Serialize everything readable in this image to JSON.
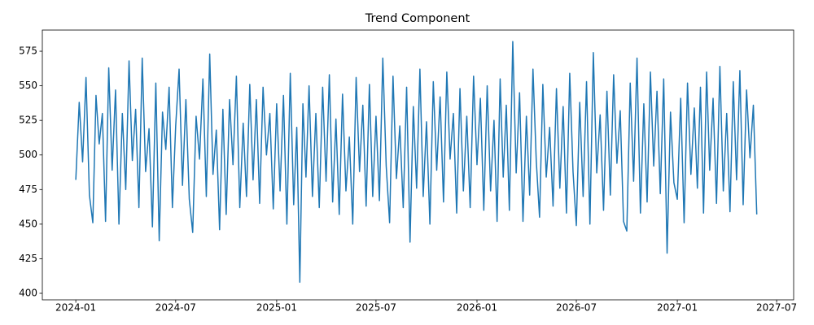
{
  "chart_data": {
    "type": "line",
    "title": "Trend Component",
    "x": [
      "2024-01",
      "2024-01",
      "2024-01",
      "2024-01",
      "2024-01",
      "2024-02",
      "2024-02",
      "2024-02",
      "2024-02",
      "2024-02",
      "2024-03",
      "2024-03",
      "2024-03",
      "2024-03",
      "2024-03",
      "2024-04",
      "2024-04",
      "2024-04",
      "2024-04",
      "2024-04",
      "2024-05",
      "2024-05",
      "2024-05",
      "2024-05",
      "2024-05",
      "2024-06",
      "2024-06",
      "2024-06",
      "2024-06",
      "2024-06",
      "2024-07",
      "2024-07",
      "2024-07",
      "2024-07",
      "2024-07",
      "2024-08",
      "2024-08",
      "2024-08",
      "2024-08",
      "2024-08",
      "2024-09",
      "2024-09",
      "2024-09",
      "2024-09",
      "2024-09",
      "2024-10",
      "2024-10",
      "2024-10",
      "2024-10",
      "2024-10",
      "2024-11",
      "2024-11",
      "2024-11",
      "2024-11",
      "2024-11",
      "2024-12",
      "2024-12",
      "2024-12",
      "2024-12",
      "2024-12",
      "2025-01",
      "2025-01",
      "2025-01",
      "2025-01",
      "2025-01",
      "2025-02",
      "2025-02",
      "2025-02",
      "2025-02",
      "2025-02",
      "2025-03",
      "2025-03",
      "2025-03",
      "2025-03",
      "2025-03",
      "2025-04",
      "2025-04",
      "2025-04",
      "2025-04",
      "2025-04",
      "2025-05",
      "2025-05",
      "2025-05",
      "2025-05",
      "2025-05",
      "2025-06",
      "2025-06",
      "2025-06",
      "2025-06",
      "2025-06",
      "2025-07",
      "2025-07",
      "2025-07",
      "2025-07",
      "2025-07",
      "2025-08",
      "2025-08",
      "2025-08",
      "2025-08",
      "2025-08",
      "2025-09",
      "2025-09",
      "2025-09",
      "2025-09",
      "2025-09",
      "2025-10",
      "2025-10",
      "2025-10",
      "2025-10",
      "2025-10",
      "2025-11",
      "2025-11",
      "2025-11",
      "2025-11",
      "2025-11",
      "2025-12",
      "2025-12",
      "2025-12",
      "2025-12",
      "2025-12",
      "2026-01",
      "2026-01",
      "2026-01",
      "2026-01",
      "2026-01",
      "2026-02",
      "2026-02",
      "2026-02",
      "2026-02",
      "2026-02",
      "2026-03",
      "2026-03",
      "2026-03",
      "2026-03",
      "2026-03",
      "2026-04",
      "2026-04",
      "2026-04",
      "2026-04",
      "2026-04",
      "2026-05",
      "2026-05",
      "2026-05",
      "2026-05",
      "2026-05",
      "2026-06",
      "2026-06",
      "2026-06",
      "2026-06",
      "2026-06",
      "2026-07",
      "2026-07",
      "2026-07",
      "2026-07",
      "2026-07",
      "2026-08",
      "2026-08",
      "2026-08",
      "2026-08",
      "2026-08",
      "2026-09",
      "2026-09",
      "2026-09",
      "2026-09",
      "2026-09",
      "2026-10",
      "2026-10",
      "2026-10",
      "2026-10",
      "2026-10",
      "2026-11",
      "2026-11",
      "2026-11",
      "2026-11",
      "2026-11",
      "2026-12",
      "2026-12",
      "2026-12",
      "2026-12",
      "2026-12",
      "2027-01",
      "2027-01",
      "2027-01",
      "2027-01",
      "2027-01",
      "2027-02",
      "2027-02",
      "2027-02",
      "2027-02",
      "2027-02",
      "2027-03",
      "2027-03",
      "2027-03",
      "2027-03",
      "2027-03",
      "2027-04",
      "2027-04",
      "2027-04",
      "2027-04",
      "2027-04",
      "2027-05",
      "2027-05",
      "2027-05",
      "2027-05",
      "2027-05"
    ],
    "series": [
      {
        "color": "#1f77b4",
        "values": [
          482,
          538,
          495,
          556,
          471,
          451,
          543,
          508,
          530,
          452,
          563,
          489,
          547,
          450,
          530,
          475,
          568,
          496,
          533,
          462,
          570,
          488,
          519,
          448,
          552,
          438,
          531,
          504,
          549,
          462,
          521,
          562,
          478,
          540,
          468,
          444,
          528,
          497,
          555,
          470,
          573,
          486,
          518,
          446,
          533,
          457,
          540,
          493,
          557,
          462,
          523,
          470,
          551,
          482,
          540,
          465,
          549,
          500,
          530,
          461,
          537,
          474,
          543,
          450,
          559,
          464,
          520,
          408,
          537,
          484,
          550,
          470,
          530,
          462,
          549,
          481,
          558,
          466,
          526,
          457,
          544,
          474,
          513,
          450,
          556,
          488,
          536,
          463,
          551,
          470,
          528,
          467,
          570,
          492,
          451,
          557,
          483,
          521,
          462,
          549,
          437,
          535,
          476,
          562,
          470,
          524,
          450,
          553,
          489,
          542,
          466,
          560,
          497,
          530,
          458,
          548,
          474,
          528,
          462,
          557,
          493,
          541,
          460,
          550,
          474,
          525,
          452,
          555,
          484,
          536,
          460,
          582,
          487,
          545,
          452,
          528,
          471,
          562,
          496,
          455,
          551,
          484,
          520,
          463,
          548,
          476,
          535,
          458,
          559,
          488,
          449,
          538,
          470,
          553,
          450,
          574,
          487,
          529,
          460,
          546,
          471,
          558,
          494,
          532,
          452,
          445,
          552,
          481,
          570,
          458,
          537,
          466,
          560,
          492,
          546,
          472,
          555,
          429,
          531,
          480,
          468,
          541,
          451,
          552,
          486,
          534,
          476,
          549,
          458,
          560,
          489,
          541,
          465,
          564,
          474,
          530,
          459,
          553,
          482,
          561,
          464,
          547,
          498,
          536,
          457
        ]
      }
    ],
    "xlim": [
      "2023-11",
      "2027-08"
    ],
    "xticks": [
      "2024-01",
      "2024-07",
      "2025-01",
      "2025-07",
      "2026-01",
      "2026-07",
      "2027-01",
      "2027-07"
    ],
    "ylim": [
      395.3,
      590.3
    ],
    "yticks": [
      400,
      425,
      450,
      475,
      500,
      525,
      550,
      575
    ]
  }
}
